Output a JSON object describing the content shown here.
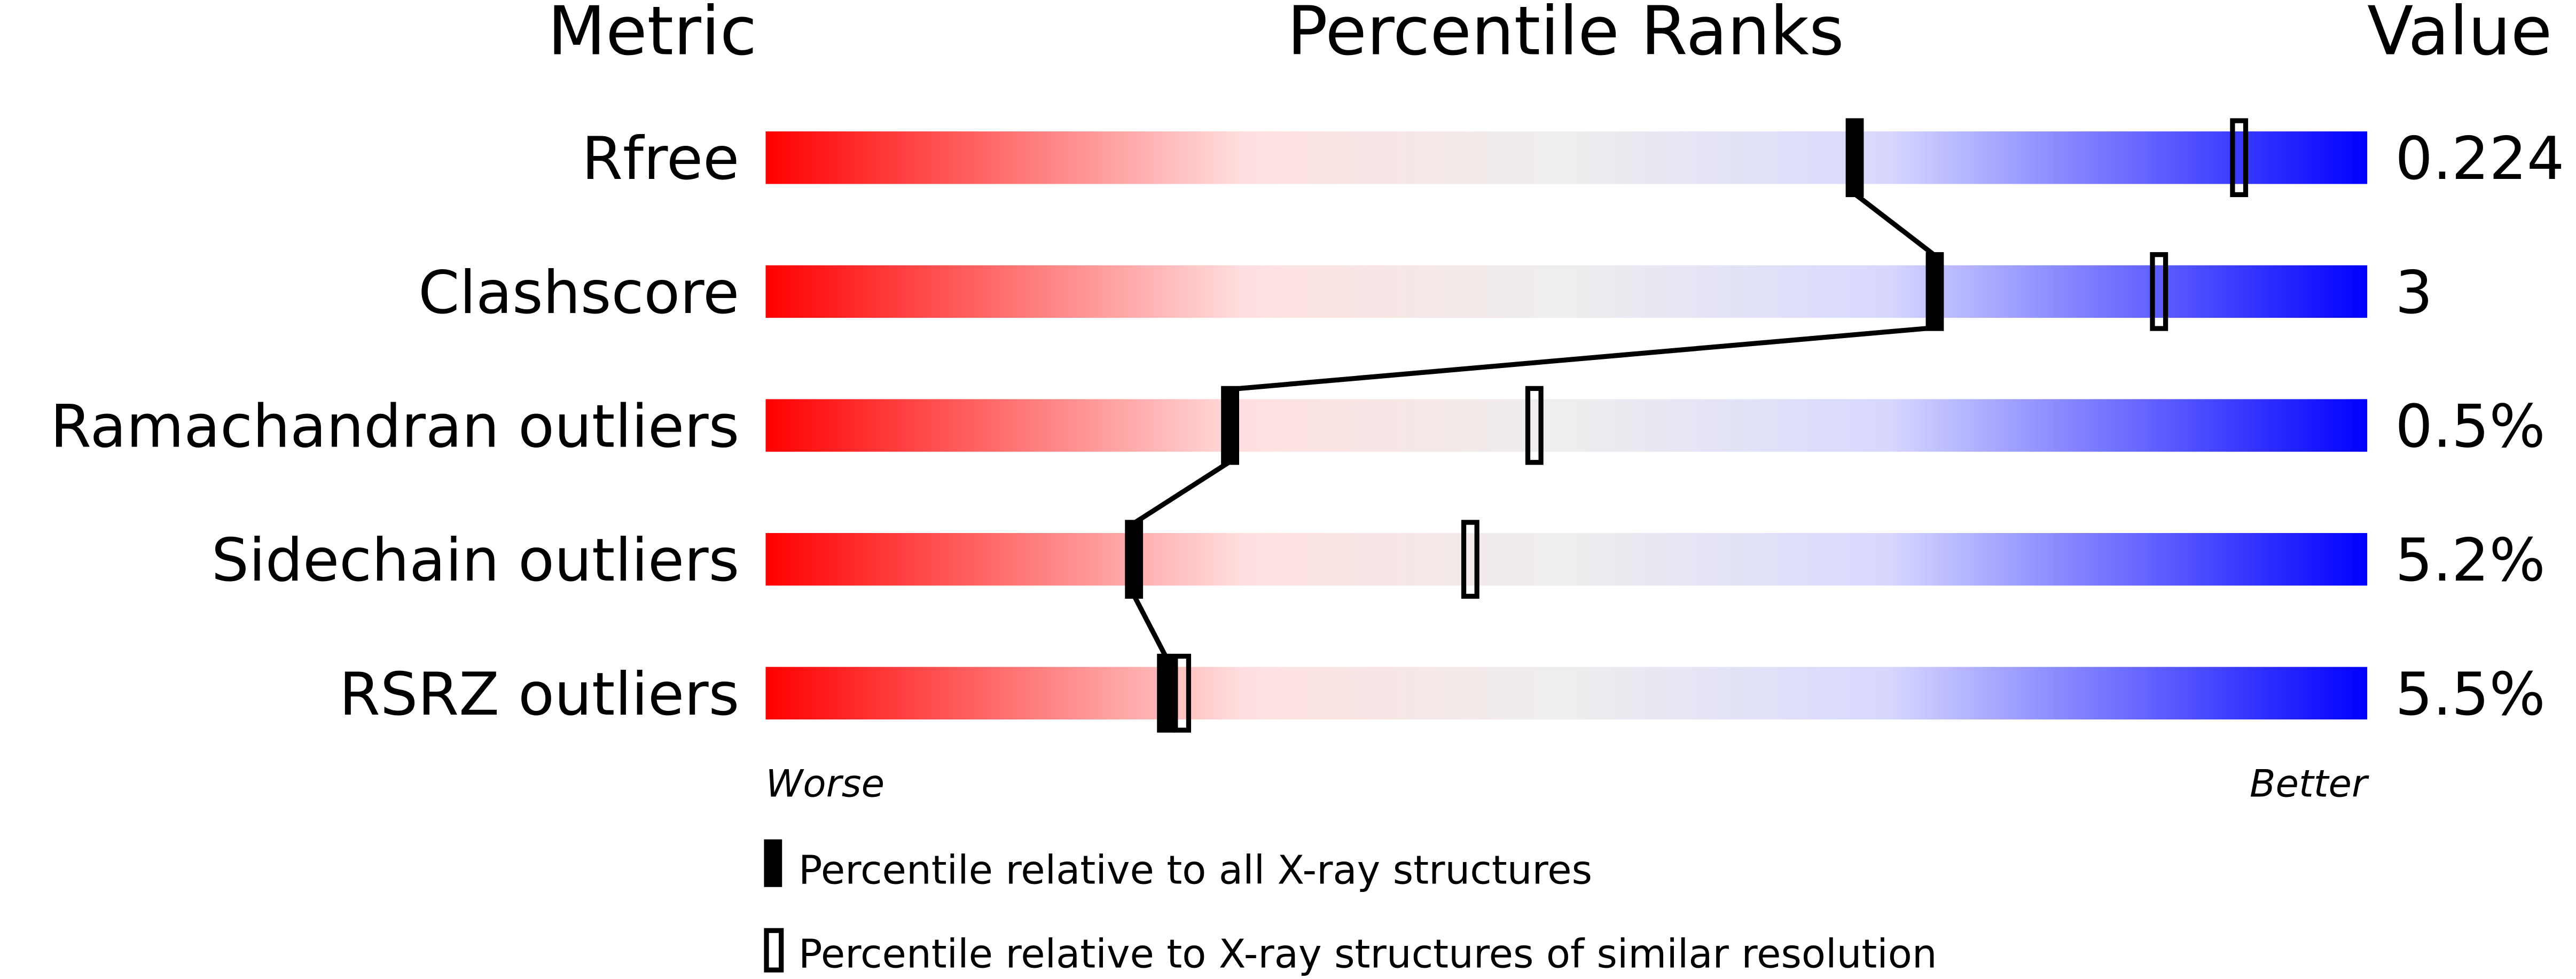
{
  "chart_data": {
    "type": "percentile-slider",
    "headers": {
      "metric": "Metric",
      "ranks": "Percentile Ranks",
      "value": "Value"
    },
    "xlim": [
      0,
      100
    ],
    "axis_labels": {
      "left": "Worse",
      "right": "Better"
    },
    "gradient_colors": [
      "#ff0000",
      "#ffe0e0",
      "#eeeeee",
      "#d8d8ff",
      "#0000ff"
    ],
    "metrics": [
      {
        "name": "Rfree",
        "value": "0.224",
        "percentile_all": 68,
        "percentile_similar": 92
      },
      {
        "name": "Clashscore",
        "value": "3",
        "percentile_all": 73,
        "percentile_similar": 87
      },
      {
        "name": "Ramachandran outliers",
        "value": "0.5%",
        "percentile_all": 29,
        "percentile_similar": 48
      },
      {
        "name": "Sidechain outliers",
        "value": "5.2%",
        "percentile_all": 23,
        "percentile_similar": 44
      },
      {
        "name": "RSRZ outliers",
        "value": "5.5%",
        "percentile_all": 25,
        "percentile_similar": 26
      }
    ],
    "legend": [
      {
        "marker": "filled",
        "label": "Percentile relative to all X-ray structures"
      },
      {
        "marker": "open",
        "label": "Percentile relative to X-ray structures of similar resolution"
      }
    ]
  }
}
